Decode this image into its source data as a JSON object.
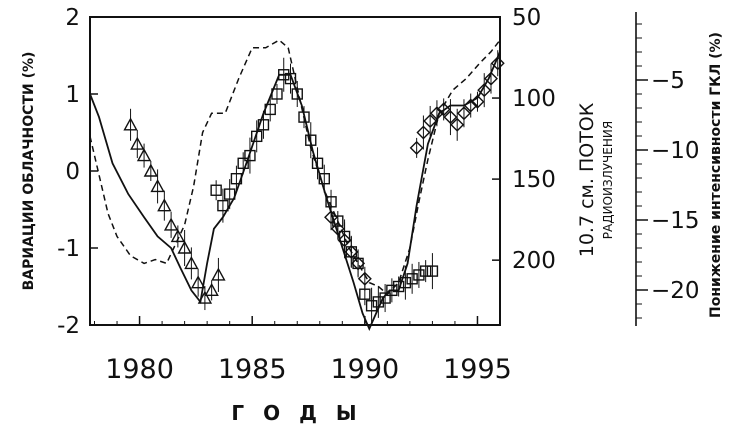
{
  "chart_data": {
    "type": "line",
    "xlabel": "Г О Д Ы",
    "xlim": [
      1977.8,
      1996
    ],
    "x_ticks": [
      "1980",
      "1985",
      "1990",
      "1995"
    ],
    "x_tick_values": [
      1980,
      1985,
      1990,
      1995
    ],
    "left_axis": {
      "label": "ВАРИАЦИИ ОБЛАЧНОСТИ (%)",
      "ylim": [
        -2,
        2
      ],
      "ticks": [
        "2",
        "1",
        "0",
        "-1",
        "-2"
      ],
      "tick_values": [
        2,
        1,
        0,
        -1,
        -2
      ]
    },
    "middle_axis": {
      "label_main": "10.7 см. ПОТОК",
      "label_sub": "РАДИОИЗЛУЧЕНИЯ",
      "ylim": [
        240,
        50
      ],
      "ticks": [
        "50",
        "100",
        "150",
        "200"
      ],
      "tick_values": [
        50,
        100,
        150,
        200
      ]
    },
    "right_axis": {
      "label": "Понижение интенсивности ГКЛ (%)",
      "ylim": [
        -22.5,
        -0.5
      ],
      "ticks": [
        "−5",
        "−10",
        "−15",
        "−20"
      ],
      "tick_values": [
        -5,
        -10,
        -15,
        -20
      ]
    },
    "series": [
      {
        "style": "solid",
        "x": [
          1977.8,
          1978.2,
          1978.8,
          1979.5,
          1980.2,
          1980.8,
          1981.4,
          1981.8,
          1982.3,
          1982.7,
          1983.0,
          1983.3,
          1983.7,
          1984.2,
          1984.8,
          1985.5,
          1986.2,
          1986.7,
          1987.2,
          1987.7,
          1988.3,
          1988.9,
          1989.5,
          1989.9,
          1990.2,
          1990.5,
          1990.8,
          1991.1,
          1991.5,
          1991.9,
          1992.3,
          1992.8,
          1993.3,
          1993.8,
          1994.4,
          1995.0,
          1995.5,
          1996.0
        ],
        "y": [
          1.0,
          0.7,
          0.1,
          -0.3,
          -0.6,
          -0.85,
          -1.0,
          -1.25,
          -1.55,
          -1.7,
          -1.2,
          -0.75,
          -0.6,
          -0.35,
          0.15,
          0.75,
          1.25,
          1.25,
          0.85,
          0.25,
          -0.35,
          -0.9,
          -1.45,
          -1.85,
          -2.05,
          -1.85,
          -1.65,
          -1.55,
          -1.55,
          -1.2,
          -0.45,
          0.35,
          0.75,
          0.85,
          0.85,
          0.95,
          1.2,
          1.55
        ]
      },
      {
        "style": "dashed",
        "x": [
          1977.8,
          1978.2,
          1978.6,
          1979.0,
          1979.6,
          1980.2,
          1980.7,
          1981.2,
          1981.6,
          1982.0,
          1982.4,
          1982.8,
          1983.2,
          1983.8,
          1984.4,
          1985.0,
          1985.6,
          1986.2,
          1986.6,
          1987.1,
          1987.6,
          1988.2,
          1988.8,
          1989.3,
          1989.8,
          1990.2,
          1990.6,
          1991.0,
          1991.5,
          1992.0,
          1992.4,
          1992.8,
          1993.3,
          1993.9,
          1994.5,
          1995.1,
          1995.6,
          1996.0
        ],
        "y": [
          0.45,
          -0.05,
          -0.55,
          -0.85,
          -1.1,
          -1.2,
          -1.15,
          -1.2,
          -0.95,
          -0.7,
          -0.2,
          0.5,
          0.75,
          0.75,
          1.2,
          1.6,
          1.6,
          1.7,
          1.6,
          0.95,
          0.3,
          -0.25,
          -0.65,
          -1.0,
          -1.25,
          -1.45,
          -1.5,
          -1.6,
          -1.45,
          -1.0,
          -0.4,
          0.15,
          0.75,
          1.05,
          1.2,
          1.4,
          1.55,
          1.7
        ]
      },
      {
        "style": "triangles",
        "x": [
          1979.6,
          1979.9,
          1980.2,
          1980.5,
          1980.8,
          1981.1,
          1981.4,
          1981.7,
          1982.0,
          1982.3,
          1982.6,
          1982.9,
          1983.2,
          1983.5
        ],
        "y": [
          0.6,
          0.35,
          0.2,
          0.0,
          -0.2,
          -0.45,
          -0.7,
          -0.85,
          -1.0,
          -1.2,
          -1.45,
          -1.65,
          -1.55,
          -1.35
        ]
      },
      {
        "style": "squares",
        "x": [
          1983.4,
          1983.7,
          1984.0,
          1984.3,
          1984.6,
          1984.9,
          1985.2,
          1985.5,
          1985.8,
          1986.1,
          1986.4,
          1986.7,
          1987.0,
          1987.3,
          1987.6,
          1987.9,
          1988.2,
          1988.5,
          1988.8,
          1989.1,
          1989.4,
          1989.7,
          1990.0,
          1990.3,
          1990.6,
          1990.9,
          1991.2,
          1991.5,
          1991.8,
          1992.1,
          1992.4,
          1992.7,
          1993.0
        ],
        "y": [
          -0.25,
          -0.45,
          -0.3,
          -0.1,
          0.1,
          0.2,
          0.45,
          0.6,
          0.8,
          1.0,
          1.25,
          1.2,
          1.0,
          0.7,
          0.4,
          0.1,
          -0.1,
          -0.4,
          -0.65,
          -0.85,
          -1.05,
          -1.2,
          -1.6,
          -1.75,
          -1.7,
          -1.65,
          -1.55,
          -1.5,
          -1.45,
          -1.4,
          -1.35,
          -1.3,
          -1.3
        ]
      },
      {
        "style": "diamonds",
        "x": [
          1988.5,
          1988.8,
          1989.1,
          1989.4,
          1989.7,
          1990.0,
          1992.3,
          1992.6,
          1992.9,
          1993.2,
          1993.5,
          1993.8,
          1994.1,
          1994.4,
          1994.7,
          1995.0,
          1995.3,
          1995.6,
          1995.9
        ],
        "y": [
          -0.6,
          -0.75,
          -0.9,
          -1.05,
          -1.2,
          -1.4,
          0.3,
          0.5,
          0.65,
          0.75,
          0.8,
          0.7,
          0.6,
          0.75,
          0.85,
          0.9,
          1.05,
          1.2,
          1.4
        ]
      }
    ]
  }
}
